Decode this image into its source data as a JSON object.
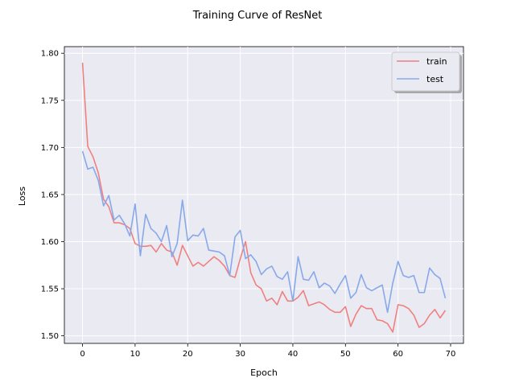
{
  "chart_data": {
    "type": "line",
    "title": "Training Curve of ResNet",
    "xlabel": "Epoch",
    "ylabel": "Loss",
    "xlim": [
      -3.45,
      72.45
    ],
    "ylim": [
      1.492,
      1.807
    ],
    "xticks": [
      0,
      10,
      20,
      30,
      40,
      50,
      60,
      70
    ],
    "yticks": [
      1.5,
      1.55,
      1.6,
      1.65,
      1.7,
      1.75,
      1.8
    ],
    "xtick_labels": [
      "0",
      "10",
      "20",
      "30",
      "40",
      "50",
      "60",
      "70"
    ],
    "ytick_labels": [
      "1.50",
      "1.55",
      "1.60",
      "1.65",
      "1.70",
      "1.75",
      "1.80"
    ],
    "grid": true,
    "background": "#eaeaf2",
    "legend_position": "top-right",
    "x": [
      0,
      1,
      2,
      3,
      4,
      5,
      6,
      7,
      8,
      9,
      10,
      11,
      12,
      13,
      14,
      15,
      16,
      17,
      18,
      19,
      20,
      21,
      22,
      23,
      24,
      25,
      26,
      27,
      28,
      29,
      30,
      31,
      32,
      33,
      34,
      35,
      36,
      37,
      38,
      39,
      40,
      41,
      42,
      43,
      44,
      45,
      46,
      47,
      48,
      49,
      50,
      51,
      52,
      53,
      54,
      55,
      56,
      57,
      58,
      59,
      60,
      61,
      62,
      63,
      64,
      65,
      66,
      67,
      68,
      69
    ],
    "series": [
      {
        "name": "train",
        "color": "#f08080",
        "values": [
          1.79,
          1.701,
          1.69,
          1.673,
          1.645,
          1.637,
          1.62,
          1.62,
          1.618,
          1.614,
          1.598,
          1.595,
          1.595,
          1.596,
          1.589,
          1.598,
          1.591,
          1.589,
          1.575,
          1.596,
          1.585,
          1.574,
          1.578,
          1.574,
          1.579,
          1.584,
          1.58,
          1.574,
          1.564,
          1.562,
          1.582,
          1.6,
          1.567,
          1.554,
          1.55,
          1.537,
          1.54,
          1.533,
          1.547,
          1.537,
          1.537,
          1.541,
          1.548,
          1.532,
          1.534,
          1.536,
          1.533,
          1.528,
          1.525,
          1.525,
          1.531,
          1.51,
          1.523,
          1.532,
          1.529,
          1.529,
          1.517,
          1.516,
          1.513,
          1.504,
          1.533,
          1.532,
          1.529,
          1.522,
          1.509,
          1.513,
          1.522,
          1.528,
          1.519,
          1.527
        ]
      },
      {
        "name": "test",
        "color": "#87a9ea",
        "values": [
          1.696,
          1.677,
          1.679,
          1.665,
          1.638,
          1.649,
          1.623,
          1.628,
          1.619,
          1.606,
          1.64,
          1.585,
          1.629,
          1.614,
          1.609,
          1.6,
          1.617,
          1.584,
          1.598,
          1.644,
          1.601,
          1.607,
          1.606,
          1.614,
          1.591,
          1.59,
          1.589,
          1.585,
          1.564,
          1.605,
          1.612,
          1.582,
          1.586,
          1.579,
          1.565,
          1.571,
          1.574,
          1.563,
          1.56,
          1.568,
          1.537,
          1.584,
          1.56,
          1.559,
          1.568,
          1.551,
          1.556,
          1.553,
          1.545,
          1.555,
          1.564,
          1.54,
          1.546,
          1.565,
          1.551,
          1.548,
          1.551,
          1.554,
          1.525,
          1.556,
          1.579,
          1.564,
          1.562,
          1.564,
          1.546,
          1.546,
          1.572,
          1.565,
          1.561,
          1.54
        ]
      }
    ]
  }
}
